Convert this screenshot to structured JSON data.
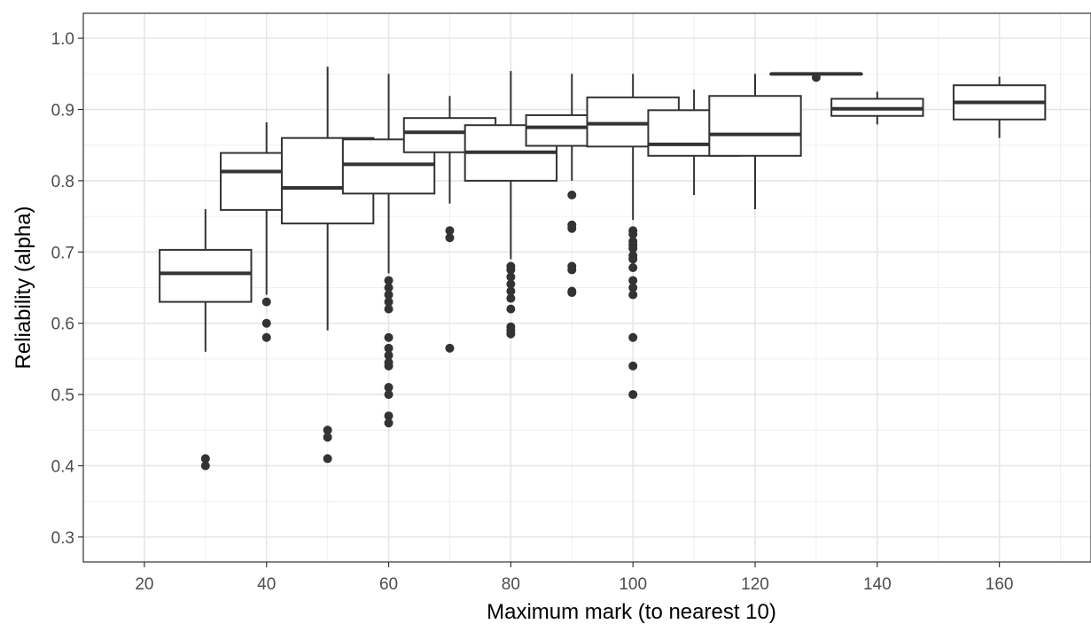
{
  "chart_data": {
    "type": "boxplot",
    "title": "",
    "xlabel": "Maximum mark (to nearest 10)",
    "ylabel": "Reliability (alpha)",
    "xlim": [
      10,
      175
    ],
    "ylim": [
      0.265,
      1.035
    ],
    "x_ticks": [
      20,
      40,
      60,
      80,
      100,
      120,
      140,
      160
    ],
    "y_ticks": [
      0.3,
      0.4,
      0.5,
      0.6,
      0.7,
      0.8,
      0.9,
      1.0
    ],
    "x_tick_labels": [
      "20",
      "40",
      "60",
      "80",
      "100",
      "120",
      "140",
      "160"
    ],
    "y_tick_labels": [
      "0.3",
      "0.4",
      "0.5",
      "0.6",
      "0.7",
      "0.8",
      "0.9",
      "1.0"
    ],
    "grid": true,
    "box_width": 15,
    "boxes": [
      {
        "x": 30,
        "lower_whisker": 0.56,
        "q1": 0.63,
        "median": 0.67,
        "q3": 0.703,
        "upper_whisker": 0.76,
        "outliers": [
          0.41,
          0.4
        ]
      },
      {
        "x": 40,
        "lower_whisker": 0.64,
        "q1": 0.759,
        "median": 0.813,
        "q3": 0.839,
        "upper_whisker": 0.882,
        "outliers": [
          0.63,
          0.6,
          0.58
        ]
      },
      {
        "x": 50,
        "lower_whisker": 0.59,
        "q1": 0.74,
        "median": 0.79,
        "q3": 0.86,
        "upper_whisker": 0.96,
        "outliers": [
          0.45,
          0.44,
          0.41
        ]
      },
      {
        "x": 60,
        "lower_whisker": 0.67,
        "q1": 0.782,
        "median": 0.823,
        "q3": 0.858,
        "upper_whisker": 0.95,
        "outliers": [
          0.66,
          0.65,
          0.64,
          0.63,
          0.62,
          0.58,
          0.565,
          0.555,
          0.545,
          0.54,
          0.51,
          0.5,
          0.47,
          0.46
        ]
      },
      {
        "x": 70,
        "lower_whisker": 0.768,
        "q1": 0.84,
        "median": 0.868,
        "q3": 0.888,
        "upper_whisker": 0.919,
        "outliers": [
          0.73,
          0.72,
          0.565
        ]
      },
      {
        "x": 80,
        "lower_whisker": 0.69,
        "q1": 0.8,
        "median": 0.84,
        "q3": 0.878,
        "upper_whisker": 0.954,
        "outliers": [
          0.68,
          0.675,
          0.665,
          0.655,
          0.645,
          0.635,
          0.62,
          0.595,
          0.59,
          0.585
        ]
      },
      {
        "x": 90,
        "lower_whisker": 0.8,
        "q1": 0.849,
        "median": 0.875,
        "q3": 0.892,
        "upper_whisker": 0.95,
        "outliers": [
          0.78,
          0.738,
          0.733,
          0.68,
          0.675,
          0.645,
          0.643
        ]
      },
      {
        "x": 100,
        "lower_whisker": 0.745,
        "q1": 0.848,
        "median": 0.88,
        "q3": 0.917,
        "upper_whisker": 0.95,
        "outliers": [
          0.73,
          0.725,
          0.715,
          0.71,
          0.705,
          0.695,
          0.69,
          0.678,
          0.66,
          0.65,
          0.64,
          0.58,
          0.54,
          0.5
        ]
      },
      {
        "x": 110,
        "lower_whisker": 0.78,
        "q1": 0.835,
        "median": 0.851,
        "q3": 0.899,
        "upper_whisker": 0.928,
        "outliers": []
      },
      {
        "x": 120,
        "lower_whisker": 0.76,
        "q1": 0.835,
        "median": 0.865,
        "q3": 0.919,
        "upper_whisker": 0.95,
        "outliers": []
      },
      {
        "x": 130,
        "lower_whisker": 0.95,
        "q1": 0.95,
        "median": 0.95,
        "q3": 0.95,
        "upper_whisker": 0.95,
        "outliers": [
          0.945
        ]
      },
      {
        "x": 140,
        "lower_whisker": 0.879,
        "q1": 0.891,
        "median": 0.901,
        "q3": 0.915,
        "upper_whisker": 0.925,
        "outliers": []
      },
      {
        "x": 160,
        "lower_whisker": 0.86,
        "q1": 0.886,
        "median": 0.91,
        "q3": 0.934,
        "upper_whisker": 0.946,
        "outliers": []
      }
    ]
  }
}
